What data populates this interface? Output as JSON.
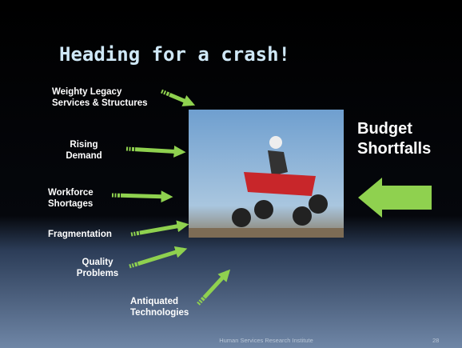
{
  "slide": {
    "title": "Heading for a crash!",
    "labels": [
      {
        "lines": [
          "Weighty Legacy",
          "Services & Structures"
        ]
      },
      {
        "lines": [
          "Rising",
          "Demand"
        ]
      },
      {
        "lines": [
          "Workforce",
          "Shortages"
        ]
      },
      {
        "lines": [
          "Fragmentation"
        ]
      },
      {
        "lines": [
          "Quality",
          "Problems"
        ]
      },
      {
        "lines": [
          "Antiquated",
          "Technologies"
        ]
      }
    ],
    "side_text": [
      "Budget",
      "Shortfalls"
    ],
    "footer": "Human Services Research Institute",
    "page_number": "28"
  }
}
